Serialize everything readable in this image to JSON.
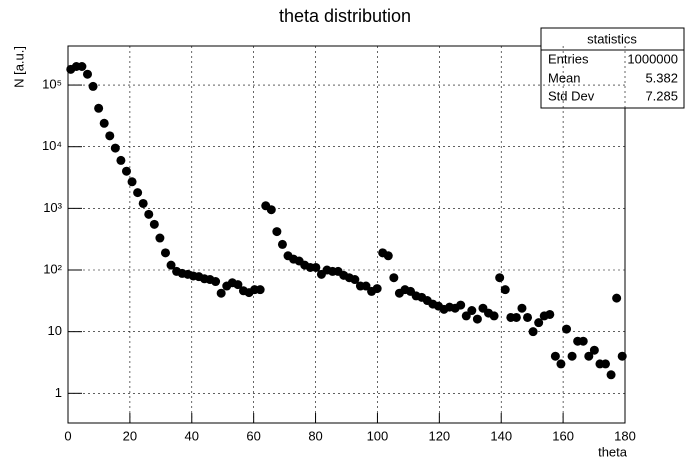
{
  "chart_data": {
    "type": "scatter",
    "title": "theta distribution",
    "x_label": "theta",
    "y_label": "N [a.u.]",
    "color": "#000000",
    "log_y": true,
    "grid": true,
    "xlim": [
      0,
      180
    ],
    "xticks": [
      0,
      20,
      40,
      60,
      80,
      100,
      120,
      140,
      160,
      180
    ],
    "ylim": [
      0.33,
      430000
    ],
    "yticks": [
      1,
      10,
      {
        "value": 100,
        "label": "10²"
      },
      {
        "value": 1000,
        "label": "10³"
      },
      {
        "value": 10000,
        "label": "10⁴"
      },
      {
        "value": 100000,
        "label": "10⁵"
      }
    ],
    "x": [
      0.9,
      2.7,
      4.5,
      6.3,
      8.1,
      9.9,
      11.7,
      13.5,
      15.3,
      17.1,
      18.9,
      20.7,
      22.5,
      24.3,
      26.1,
      27.9,
      29.7,
      31.5,
      33.3,
      35.1,
      36.9,
      38.7,
      40.5,
      42.3,
      44.1,
      45.9,
      47.7,
      49.5,
      51.3,
      53.1,
      54.9,
      56.7,
      58.5,
      60.3,
      62.1,
      63.9,
      65.7,
      67.5,
      69.3,
      71.1,
      72.9,
      74.7,
      76.5,
      78.3,
      80.1,
      81.9,
      83.7,
      85.5,
      87.3,
      89.1,
      90.9,
      92.7,
      94.5,
      96.3,
      98.1,
      99.9,
      101.7,
      103.5,
      105.3,
      107.1,
      108.9,
      110.7,
      112.5,
      114.3,
      116.1,
      117.9,
      119.7,
      121.5,
      123.3,
      125.1,
      126.9,
      128.7,
      130.5,
      132.3,
      134.1,
      135.9,
      137.7,
      139.5,
      141.3,
      143.1,
      144.9,
      146.7,
      148.5,
      150.3,
      152.1,
      153.9,
      155.7,
      157.5,
      159.3,
      161.1,
      162.9,
      164.7,
      166.5,
      168.3,
      170.1,
      171.9,
      173.7,
      175.5,
      177.3,
      179.1
    ],
    "values": [
      180000,
      200000,
      200000,
      150000,
      95000,
      42000,
      24000,
      15000,
      9500,
      6000,
      4000,
      2700,
      1800,
      1200,
      800,
      550,
      330,
      190,
      120,
      95,
      88,
      85,
      80,
      78,
      72,
      70,
      65,
      42,
      55,
      62,
      58,
      46,
      43,
      48,
      48,
      1100,
      950,
      420,
      260,
      170,
      150,
      140,
      120,
      110,
      110,
      85,
      100,
      95,
      95,
      82,
      75,
      70,
      55,
      55,
      45,
      50,
      190,
      170,
      75,
      42,
      48,
      45,
      38,
      36,
      32,
      28,
      26,
      23,
      25,
      24,
      27,
      18,
      22,
      16,
      24,
      20,
      18,
      75,
      48,
      17,
      17,
      24,
      17,
      10,
      14,
      18,
      19,
      4,
      3,
      11,
      4,
      7,
      7,
      4,
      5,
      3,
      3,
      2,
      35,
      4
    ],
    "stats": {
      "title": "statistics",
      "rows": [
        [
          "Entries",
          1000000
        ],
        [
          "Mean",
          5.382
        ],
        [
          "Std Dev",
          7.285
        ]
      ]
    }
  }
}
